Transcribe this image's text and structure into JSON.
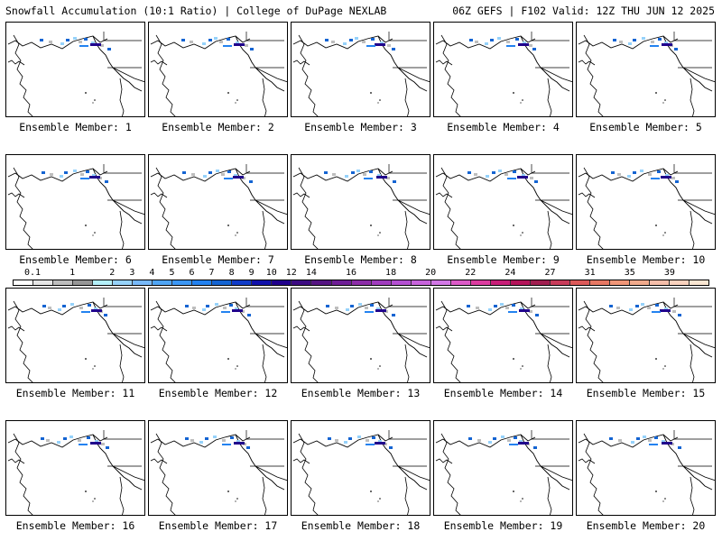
{
  "header": {
    "title_left": "Snowfall Accumulation (10:1 Ratio) | College of DuPage NEXLAB",
    "title_right": "06Z GEFS | F102 Valid: 12Z THU JUN 12 2025"
  },
  "colorbar": {
    "tick_labels": [
      "0.1",
      "1",
      "2",
      "3",
      "4",
      "5",
      "6",
      "7",
      "8",
      "9",
      "10",
      "12",
      "14",
      "16",
      "18",
      "20",
      "22",
      "24",
      "27",
      "31",
      "35",
      "39"
    ],
    "colors": [
      "#ffffff",
      "#e6e6e6",
      "#bebebe",
      "#969696",
      "#b4f0fa",
      "#96d2fa",
      "#78b9fa",
      "#50a5f5",
      "#3c97f5",
      "#2382f0",
      "#1464d2",
      "#103cc8",
      "#1010aa",
      "#20008c",
      "#3c0a82",
      "#551482",
      "#6e1e96",
      "#8c2da8",
      "#a03cbe",
      "#b450d2",
      "#c864dc",
      "#d278e6",
      "#dc5ac8",
      "#dc3ca0",
      "#c81e78",
      "#b4145a",
      "#a01e50",
      "#c83c5a",
      "#dc5a5a",
      "#e67864",
      "#f09678",
      "#f0aa8c",
      "#f5beaa",
      "#fad2be",
      "#fae6d2"
    ],
    "tick_index": [
      0,
      2,
      4,
      5,
      6,
      7,
      8,
      9,
      10,
      11,
      12,
      13,
      14,
      16,
      18,
      20,
      22,
      24,
      26,
      28,
      30,
      32
    ]
  },
  "panels": [
    {
      "label": "Ensemble Member: 1"
    },
    {
      "label": "Ensemble Member: 2"
    },
    {
      "label": "Ensemble Member: 3"
    },
    {
      "label": "Ensemble Member: 4"
    },
    {
      "label": "Ensemble Member: 5"
    },
    {
      "label": "Ensemble Member: 6"
    },
    {
      "label": "Ensemble Member: 7"
    },
    {
      "label": "Ensemble Member: 8"
    },
    {
      "label": "Ensemble Member: 9"
    },
    {
      "label": "Ensemble Member: 10"
    },
    {
      "label": "Ensemble Member: 11"
    },
    {
      "label": "Ensemble Member: 12"
    },
    {
      "label": "Ensemble Member: 13"
    },
    {
      "label": "Ensemble Member: 14"
    },
    {
      "label": "Ensemble Member: 15"
    },
    {
      "label": "Ensemble Member: 16"
    },
    {
      "label": "Ensemble Member: 17"
    },
    {
      "label": "Ensemble Member: 18"
    },
    {
      "label": "Ensemble Member: 19"
    },
    {
      "label": "Ensemble Member: 20"
    }
  ]
}
